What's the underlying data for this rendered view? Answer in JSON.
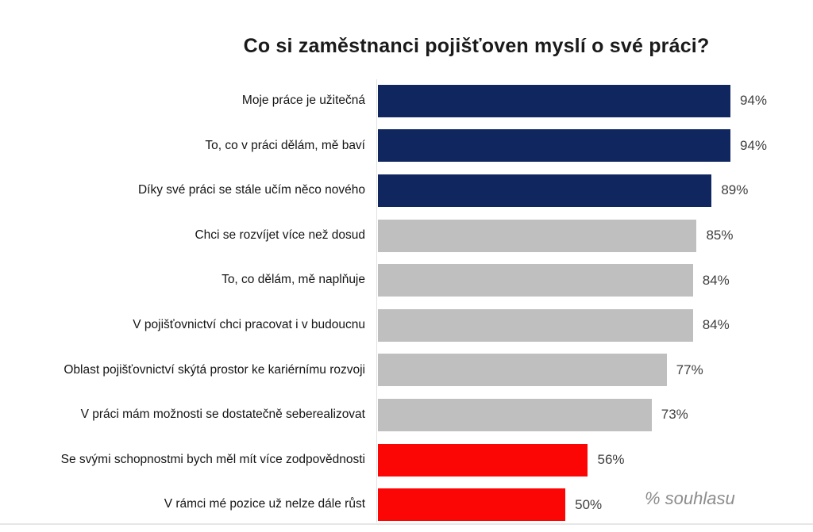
{
  "title": "Co si zaměstnanci pojišťoven myslí o své práci?",
  "colors": {
    "navy": "#10265f",
    "gray": "#bfbfbf",
    "red": "#fb0505",
    "value_label": "#3f3f3f",
    "annotation": "#8c8c8c",
    "axis_line": "#e2e2e2"
  },
  "chart_data": {
    "type": "bar",
    "orientation": "horizontal",
    "title": "Co si zaměstnanci pojišťoven myslí o své práci?",
    "xlabel": "",
    "ylabel": "",
    "xlim": [
      0,
      100
    ],
    "unit": "%",
    "grid": false,
    "legend": false,
    "annotation": "% souhlasu",
    "categories": [
      "Moje práce je užitečná",
      "To, co v práci dělám, mě baví",
      "Díky své práci se stále učím něco nového",
      "Chci se rozvíjet více než dosud",
      "To, co dělám, mě naplňuje",
      "V pojišťovnictví chci pracovat i v budoucnu",
      "Oblast pojišťovnictví skýtá prostor ke kariérnímu rozvoji",
      "V práci mám možnosti se dostatečně seberealizovat",
      "Se svými schopnostmi bych měl mít více zodpovědnosti",
      "V rámci mé pozice už nelze dále růst"
    ],
    "values": [
      94,
      94,
      89,
      85,
      84,
      84,
      77,
      73,
      56,
      50
    ],
    "value_labels": [
      "94%",
      "94%",
      "89%",
      "85%",
      "84%",
      "84%",
      "77%",
      "73%",
      "56%",
      "50%"
    ],
    "bar_colors": [
      "navy",
      "navy",
      "navy",
      "gray",
      "gray",
      "gray",
      "gray",
      "gray",
      "red",
      "red"
    ]
  }
}
